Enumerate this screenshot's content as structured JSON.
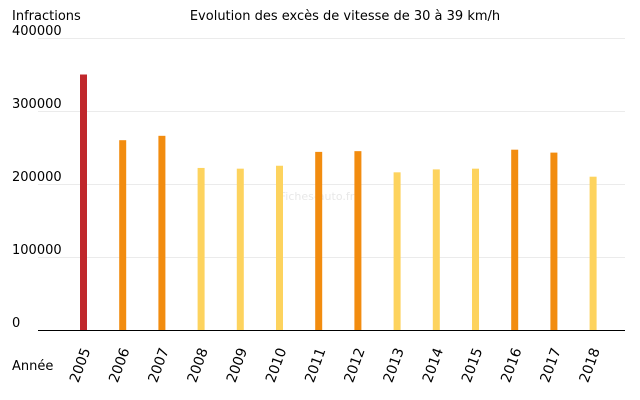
{
  "chart_data": {
    "type": "bar",
    "title": "Evolution des excès de vitesse de 30 à 39 km/h",
    "ylabel": "Infractions",
    "xlabel": "Année",
    "ylim": [
      0,
      400000
    ],
    "yticks": [
      "0",
      "100000",
      "200000",
      "300000",
      "400000"
    ],
    "grid": true,
    "categories": [
      "2005",
      "2006",
      "2007",
      "2008",
      "2009",
      "2010",
      "2011",
      "2012",
      "2013",
      "2014",
      "2015",
      "2016",
      "2017",
      "2018"
    ],
    "values": [
      350000,
      260000,
      266000,
      222000,
      221000,
      225000,
      244000,
      245000,
      216000,
      220000,
      221000,
      247000,
      243000,
      210000
    ],
    "colors": [
      "#c0282c",
      "#f28c0f",
      "#f28c0f",
      "#fdd35e",
      "#fdd35e",
      "#fdd35e",
      "#f28c0f",
      "#f28c0f",
      "#fdd35e",
      "#fdd35e",
      "#fdd35e",
      "#f28c0f",
      "#f28c0f",
      "#fdd35e"
    ],
    "watermark": "Fiches-auto.fr"
  }
}
